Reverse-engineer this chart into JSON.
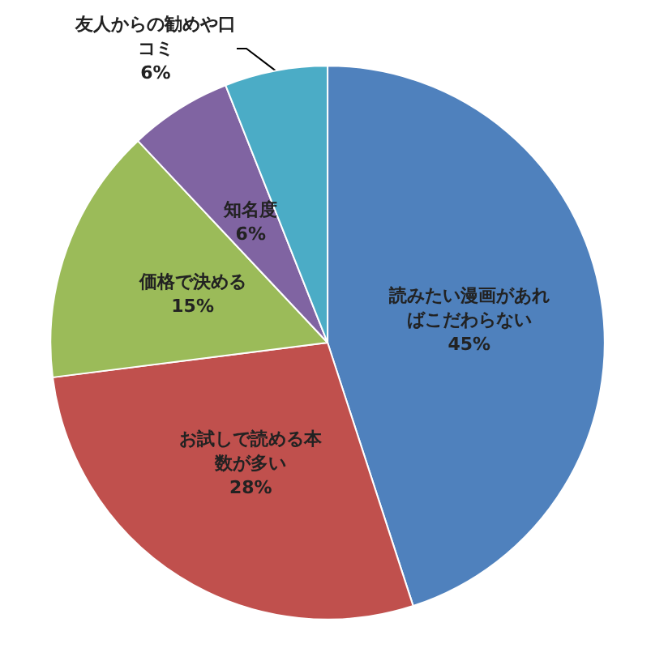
{
  "chart_data": {
    "type": "pie",
    "categories": [
      "読みたい漫画があればこだわらない",
      "お試しで読める本数が多い",
      "価格で決める",
      "知名度",
      "友人からの勧めや口コミ"
    ],
    "values": [
      45,
      28,
      15,
      6,
      6
    ],
    "value_labels": [
      "45%",
      "28%",
      "15%",
      "6%",
      "6%"
    ],
    "colors": [
      "#4f81bd",
      "#c0504d",
      "#9bbb59",
      "#8064a2",
      "#4bacc6"
    ],
    "legend": false
  }
}
